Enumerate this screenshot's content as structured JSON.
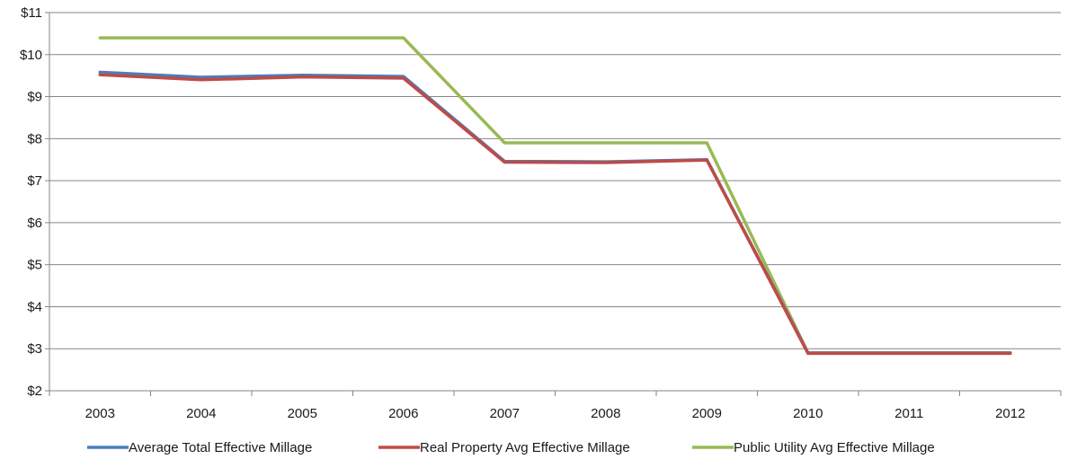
{
  "chart_data": {
    "type": "line",
    "title": "",
    "xlabel": "",
    "ylabel": "",
    "categories": [
      "2003",
      "2004",
      "2005",
      "2006",
      "2007",
      "2008",
      "2009",
      "2010",
      "2011",
      "2012"
    ],
    "ylim": [
      2,
      11
    ],
    "yticks": [
      2,
      3,
      4,
      5,
      6,
      7,
      8,
      9,
      10,
      11
    ],
    "ytick_labels": [
      "$2",
      "$3",
      "$4",
      "$5",
      "$6",
      "$7",
      "$8",
      "$9",
      "$10",
      "$11"
    ],
    "grid": "horizontal",
    "legend_position": "bottom",
    "series": [
      {
        "name": "Average Total Effective Millage",
        "color": "#4a7ebb",
        "values": [
          9.58,
          9.46,
          9.51,
          9.48,
          7.46,
          7.45,
          7.5,
          2.9,
          2.9,
          2.9
        ]
      },
      {
        "name": "Real Property Avg Effective Millage",
        "color": "#be4b48",
        "values": [
          9.52,
          9.4,
          9.47,
          9.44,
          7.44,
          7.43,
          7.49,
          2.89,
          2.89,
          2.89
        ]
      },
      {
        "name": "Public Utility Avg Effective Millage",
        "color": "#98b954",
        "values": [
          10.4,
          10.4,
          10.4,
          10.4,
          7.9,
          7.9,
          7.9,
          2.9,
          2.9,
          2.9
        ]
      }
    ]
  }
}
